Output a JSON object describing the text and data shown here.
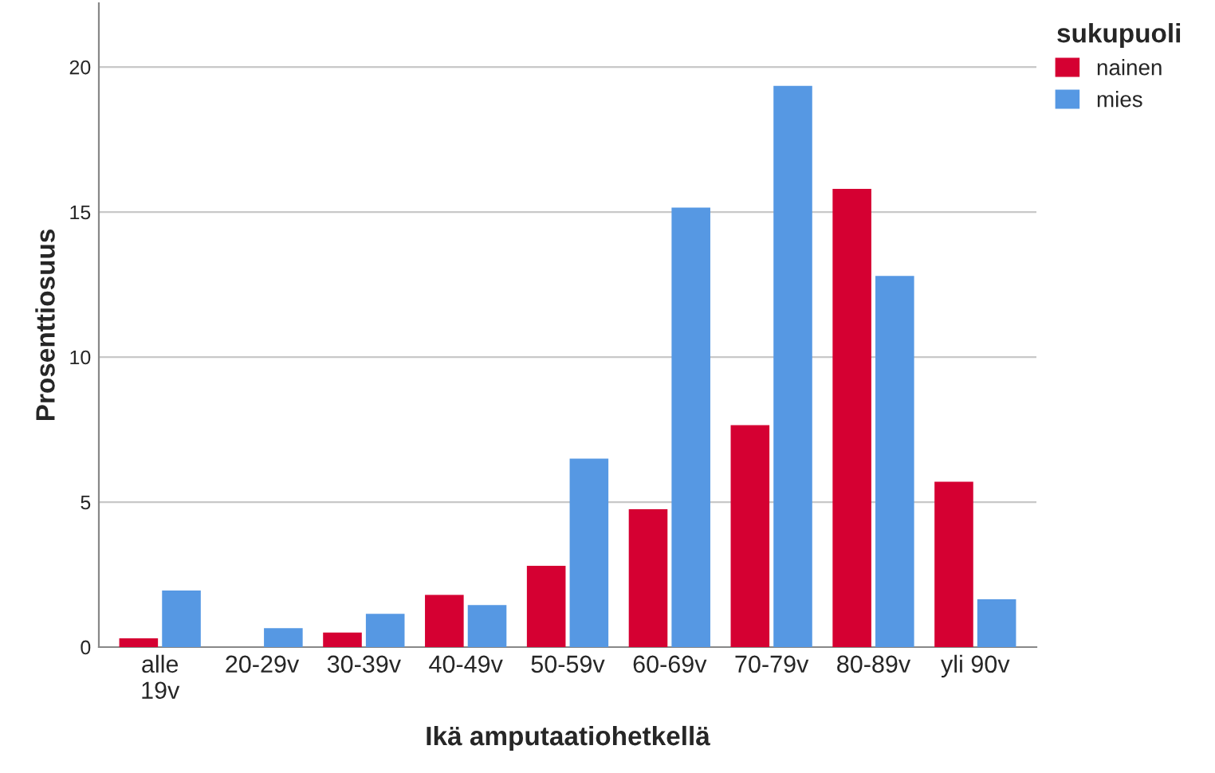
{
  "chart_data": {
    "type": "bar",
    "xlabel": "Ikä amputaatiohetkellä",
    "ylabel": "Prosenttiosuus",
    "legend_title": "sukupuoli",
    "categories": [
      "alle\n19v",
      "20-29v",
      "30-39v",
      "40-49v",
      "50-59v",
      "60-69v",
      "70-79v",
      "80-89v",
      "yli 90v"
    ],
    "series": [
      {
        "name": "nainen",
        "color": "#d50032",
        "values": [
          0.3,
          0,
          0.5,
          1.8,
          2.8,
          4.75,
          7.65,
          15.8,
          5.7
        ]
      },
      {
        "name": "mies",
        "color": "#5698e3",
        "values": [
          1.95,
          0.65,
          1.15,
          1.45,
          6.5,
          15.15,
          19.35,
          12.8,
          1.65
        ]
      }
    ],
    "ylim": [
      0,
      22.2
    ],
    "yticks": [
      0,
      5,
      10,
      15,
      20
    ],
    "grid": "y",
    "legend": "top right"
  }
}
